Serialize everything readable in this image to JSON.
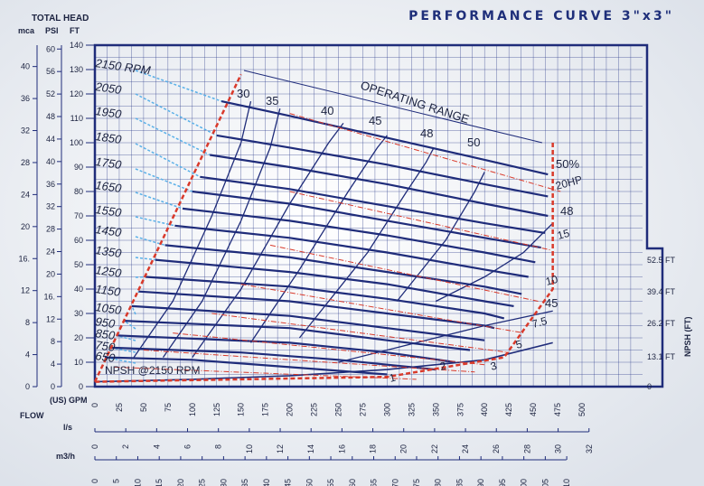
{
  "title": "PERFORMANCE CURVE 3\"x3\"",
  "colors": {
    "navy": "#1f2c7a",
    "grid": "#2a3a8a",
    "red": "#d93a2b",
    "lightblue": "#5ab0e8",
    "bg": "#eef0f4"
  },
  "axes": {
    "total_head_label": "TOTAL HEAD",
    "mca_label": "mca",
    "psi_label": "PSI",
    "ft_label": "FT",
    "gpm_label": "(US) GPM",
    "flow_label": "FLOW",
    "ls_label": "l/s",
    "m3h_label": "m3/h",
    "npsh_label": "NPSH (FT)",
    "ft_ticks": [
      "0",
      "10",
      "20",
      "30",
      "40",
      "50",
      "60",
      "70",
      "80",
      "90",
      "100",
      "110",
      "120",
      "130",
      "140"
    ],
    "psi_ticks": [
      "0",
      "4",
      "8",
      "12",
      "16.",
      "20",
      "24",
      "28",
      "32",
      "36",
      "40",
      "44",
      "48",
      "52",
      "56",
      "60"
    ],
    "mca_ticks": [
      "0",
      "4",
      "8",
      "12",
      "16.",
      "20",
      "24",
      "28",
      "32",
      "36",
      "40"
    ],
    "gpm_ticks": [
      "0",
      "25",
      "50",
      "75",
      "100",
      "125",
      "150",
      "175",
      "200",
      "225",
      "250",
      "275",
      "300",
      "325",
      "350",
      "375",
      "400",
      "425",
      "450",
      "475",
      "500"
    ],
    "ls_ticks": [
      "0",
      "2",
      "4",
      "6",
      "8",
      "10",
      "12",
      "14",
      "16",
      "18",
      "20",
      "22",
      "24",
      "26",
      "28",
      "30",
      "32"
    ],
    "m3h_ticks": [
      "0",
      "5",
      "10",
      "15",
      "20",
      "25",
      "30",
      "35",
      "40",
      "45",
      "50",
      "55",
      "60",
      "65",
      "70",
      "75",
      "80",
      "85",
      "90",
      "95",
      "100",
      "105",
      "110"
    ],
    "npsh_ticks": [
      "0",
      "13.1 FT",
      "26.2 FT",
      "39.4 FT",
      "52.5 FT"
    ]
  },
  "chart_data": {
    "type": "line",
    "title": "PERFORMANCE CURVE 3\"x3\"",
    "x_unit": "US GPM",
    "y_unit": "FT",
    "xlim": [
      0,
      500
    ],
    "ylim": [
      0,
      140
    ],
    "grid": true,
    "speed_curves": [
      {
        "name": "2150 RPM",
        "x": [
          130,
          200,
          300,
          400,
          465
        ],
        "y": [
          117,
          111,
          102,
          93,
          87
        ]
      },
      {
        "name": "2050",
        "x": [
          125,
          200,
          300,
          400,
          465
        ],
        "y": [
          103,
          98,
          91,
          83,
          78
        ]
      },
      {
        "name": "1950",
        "x": [
          118,
          200,
          300,
          400,
          465
        ],
        "y": [
          95,
          90,
          83,
          75,
          70
        ]
      },
      {
        "name": "1850",
        "x": [
          108,
          200,
          300,
          400,
          462
        ],
        "y": [
          86,
          81,
          74,
          67,
          63
        ]
      },
      {
        "name": "1750",
        "x": [
          100,
          200,
          300,
          400,
          458
        ],
        "y": [
          80,
          75,
          68,
          61,
          57
        ]
      },
      {
        "name": "1650",
        "x": [
          90,
          200,
          300,
          400,
          452
        ],
        "y": [
          73,
          68,
          62,
          55,
          51
        ]
      },
      {
        "name": "1550",
        "x": [
          82,
          200,
          300,
          400,
          445
        ],
        "y": [
          66,
          61,
          55,
          48,
          45
        ]
      },
      {
        "name": "1450",
        "x": [
          72,
          200,
          300,
          400,
          438
        ],
        "y": [
          58,
          53,
          47,
          41,
          38
        ]
      },
      {
        "name": "1350",
        "x": [
          62,
          200,
          300,
          400,
          430
        ],
        "y": [
          52,
          47,
          42,
          35,
          33
        ]
      },
      {
        "name": "1250",
        "x": [
          52,
          200,
          300,
          400,
          420
        ],
        "y": [
          45,
          41,
          36,
          30,
          28
        ]
      },
      {
        "name": "1150",
        "x": [
          45,
          200,
          300,
          400,
          410
        ],
        "y": [
          39,
          35,
          30,
          25,
          24
        ]
      },
      {
        "name": "1050",
        "x": [
          38,
          200,
          300,
          400
        ],
        "y": [
          33,
          29,
          24,
          19
        ]
      },
      {
        "name": "950",
        "x": [
          30,
          200,
          300,
          385
        ],
        "y": [
          27,
          24,
          19,
          15
        ]
      },
      {
        "name": "850",
        "x": [
          22,
          200,
          300,
          370
        ],
        "y": [
          21,
          18,
          14,
          10
        ]
      },
      {
        "name": "750",
        "x": [
          16,
          150,
          250,
          350
        ],
        "y": [
          16,
          14,
          11,
          7
        ]
      },
      {
        "name": "650",
        "x": [
          10,
          100,
          200,
          300
        ],
        "y": [
          12,
          11,
          8,
          5
        ]
      }
    ],
    "efficiency_curves": [
      {
        "name": "30",
        "x": [
          40,
          80,
          120,
          150,
          160
        ],
        "y": [
          12,
          35,
          70,
          100,
          117
        ]
      },
      {
        "name": "35",
        "x": [
          70,
          110,
          150,
          180,
          190
        ],
        "y": [
          12,
          35,
          68,
          98,
          114
        ]
      },
      {
        "name": "40",
        "x": [
          100,
          150,
          200,
          240,
          255
        ],
        "y": [
          12,
          40,
          75,
          100,
          108
        ]
      },
      {
        "name": "45",
        "x": [
          160,
          210,
          260,
          290,
          300
        ],
        "y": [
          18,
          48,
          80,
          98,
          103
        ]
      },
      {
        "name": "48",
        "x": [
          210,
          280,
          320,
          340,
          348
        ],
        "y": [
          20,
          55,
          80,
          92,
          98
        ]
      },
      {
        "name": "50",
        "x": [
          310,
          320,
          360,
          390,
          400
        ],
        "y": [
          35,
          40,
          60,
          80,
          88
        ]
      },
      {
        "name": "48",
        "x": [
          350,
          400,
          440,
          470
        ],
        "y": [
          35,
          45,
          55,
          67
        ]
      },
      {
        "name": "45",
        "x": [
          250,
          330,
          400,
          470
        ],
        "y": [
          10,
          18,
          25,
          31
        ]
      }
    ],
    "efficiency_labels": [
      "30",
      "35",
      "40",
      "45",
      "48",
      "50",
      "50%",
      "48",
      "45"
    ],
    "power_labels": [
      "20HP",
      "15",
      "10",
      "7.5",
      "5",
      "3",
      "2",
      "1"
    ],
    "npsh_label": "NPSH @2150 RPM",
    "operating_range_label": "OPERATING RANGE",
    "npsh_curve": {
      "x": [
        0,
        100,
        200,
        300,
        400,
        470
      ],
      "y": [
        2,
        3,
        4.5,
        7,
        11,
        18
      ]
    }
  }
}
